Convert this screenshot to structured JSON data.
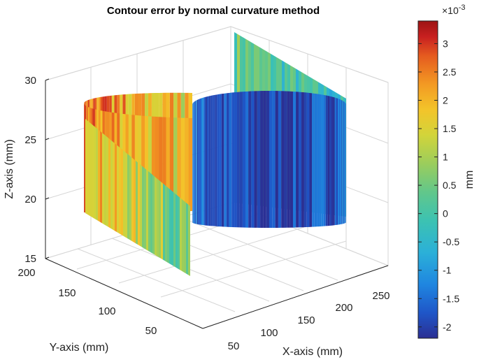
{
  "chart_data": {
    "type": "surface3d",
    "title": "Contour error by normal curvature method",
    "xlabel": "X-axis (mm)",
    "ylabel": "Y-axis (mm)",
    "zlabel": "Z-axis (mm)",
    "xticks": [
      "50",
      "100",
      "150",
      "200",
      "250"
    ],
    "yticks": [
      "50",
      "100",
      "150",
      "200"
    ],
    "zticks": [
      "15",
      "20",
      "25",
      "30"
    ],
    "xlim": [
      25,
      265
    ],
    "ylim": [
      25,
      205
    ],
    "zlim": [
      15,
      30
    ],
    "grid": true,
    "colorbar": {
      "label": "mm",
      "exponent_label": "×10",
      "exponent_power": "-3",
      "colormap": "parula-jet",
      "range": [
        -2.2,
        3.4
      ],
      "ticks": [
        "3",
        "2.5",
        "2",
        "1.5",
        "1",
        "0.5",
        "0",
        "-0.5",
        "-1",
        "-1.5",
        "-2"
      ],
      "colors": [
        "#2b2f93",
        "#1f56c8",
        "#1f86e0",
        "#2bb0d8",
        "#3cc2b2",
        "#61c78b",
        "#9bcd5c",
        "#d2d43a",
        "#f3c42a",
        "#f39a23",
        "#e55b1f",
        "#c82020",
        "#9d1414"
      ]
    },
    "surface": {
      "shape": "S-shaped wall (two semicircular sections joined by straight segments)",
      "z_range": [
        17,
        31
      ],
      "error_range": [
        -2.2,
        3.4
      ],
      "description_of_error_pattern": "Error increases to 2–3×10^-3 near the front curved section and drops to about -2×10^-3 on the right rear curved section"
    }
  }
}
